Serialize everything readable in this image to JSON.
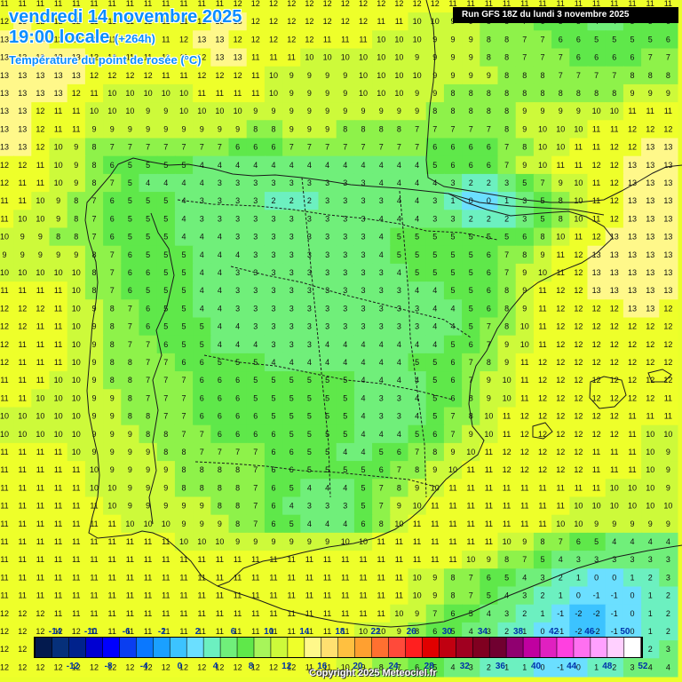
{
  "header": {
    "date": "vendredi 14 novembre 2025",
    "time": "19:00 locale",
    "lead": "(+264h)",
    "variable": "Température du point de rosée (°C)"
  },
  "run_info": "Run GFS 18Z du lundi 3 novembre 2025",
  "copyright": "Copyright 2025 Meteociel.fr",
  "legend": {
    "top_labels": [
      "-14",
      "-10",
      "-6",
      "-2",
      "2",
      "6",
      "10",
      "14",
      "18",
      "22",
      "26",
      "30",
      "34",
      "38",
      "42",
      "46",
      "50"
    ],
    "bottom_labels": [
      "-12",
      "-8",
      "-4",
      "0",
      "4",
      "8",
      "12",
      "16",
      "20",
      "24",
      "28",
      "32",
      "36",
      "40",
      "44",
      "48",
      "52"
    ],
    "colors": [
      "#031a4e",
      "#06307a",
      "#00228c",
      "#0000d2",
      "#0000ff",
      "#0a3ef0",
      "#0a78ff",
      "#1aa0ff",
      "#3cc3ff",
      "#6bdfff",
      "#6cf0c0",
      "#70ef7a",
      "#5fe84a",
      "#a7f55a",
      "#cdfa3a",
      "#eeff2a",
      "#fff88a",
      "#ffe070",
      "#ffc040",
      "#ffa030",
      "#ff7030",
      "#ff4a3a",
      "#ff1f1f",
      "#e00000",
      "#c00010",
      "#a00020",
      "#800020",
      "#700030",
      "#900070",
      "#c000a0",
      "#e020c0",
      "#ff40e0",
      "#ff70f0",
      "#ffa0ff",
      "#ffd0ff",
      "#ffffff"
    ]
  },
  "map": {
    "grid_values": [
      "11 11 11 11 11 11 11 11 11 11 11 11 11 12 12 12 12 12 12 12 12 12 12 12 12 11 11 11 11 11 11 11 11 11 11 11 11 11",
      "12 13 12 12 12 11 11 11 11 11 11 12 13 13 12 12 12 12 12 12 12 11 11 10 10 9 9 8 8 7 6 5 5 4 4 5 5 6",
      "13 13 13 12 12 11 11 11 11 11 12 13 13 12 12 12 12 12 11 11 11 10 10 10 9 9 9 8 8 7 7 6 6 5 5 5 5 6",
      "13 13 13 13 13 12 12 11 11 11 11 12 13 13 11 11 11 10 10 10 10 10 10 9 9 9 9 8 8 7 7 7 6 6 6 6 7 7",
      "13 13 13 13 13 12 12 12 12 11 11 12 12 12 11 10 9 9 9 9 10 10 10 10 9 9 9 9 8 8 8 7 7 7 7 8 8 8",
      "13 13 13 13 12 11 10 10 10 10 10 11 11 11 11 10 9 9 9 9 10 10 10 9 9 8 8 8 8 8 8 8 8 8 8 9 9 9",
      "13 13 12 11 11 10 10 10 9 9 10 10 10 10 9 9 9 9 9 9 9 9 9 9 8 8 8 8 8 9 9 9 9 10 10 11 11 11",
      "13 13 12 11 11 9 9 9 9 9 9 9 9 9 8 8 9 9 9 8 8 8 8 7 7 7 7 7 8 9 10 10 10 11 11 12 12 12",
      "13 13 12 10 9 8 7 7 7 7 7 7 7 6 6 6 7 7 7 7 7 7 7 7 6 6 6 6 7 8 10 10 11 11 12 12 13 13",
      "12 12 11 10 9 8 6 5 5 5 5 4 4 4 4 4 4 4 4 4 4 4 4 4 5 6 6 6 7 9 10 11 11 12 12 13 13 13",
      "12 11 11 10 9 8 7 5 4 4 4 4 3 3 3 3 3 3 3 3 3 4 4 4 4 3 2 2 3 5 7 9 10 11 12 13 13 13",
      "11 11 10 9 8 7 6 5 5 5 4 3 3 3 3 2 2 2 3 3 3 3 4 4 3 1 0 0 1 3 5 8 10 11 12 13 13 13",
      "11 10 10 9 8 7 6 5 5 5 4 3 3 3 3 3 3 3 3 3 3 4 4 4 3 3 2 2 2 3 5 8 10 11 12 13 13 13",
      "10 9 9 8 8 7 6 5 5 5 4 4 4 3 3 3 3 3 3 3 3 4 5 5 5 5 5 5 5 6 8 10 11 12 13 13 13 13",
      "9 9 9 9 9 8 7 6 5 5 5 4 4 4 3 3 3 3 3 3 3 4 5 5 5 5 5 6 7 8 9 11 12 13 13 13 13 13",
      "10 10 10 10 10 8 7 6 6 5 5 4 4 3 3 3 3 3 3 3 3 3 4 5 5 5 5 6 7 9 10 11 12 13 13 13 13 13",
      "11 11 11 11 10 8 7 6 5 5 5 4 4 3 3 3 3 3 3 3 3 3 3 4 4 5 5 6 8 9 11 12 12 13 13 13 13 13",
      "12 12 12 11 10 9 8 7 6 5 5 4 4 3 3 3 3 3 3 3 3 3 3 3 4 4 5 6 8 9 11 12 12 12 12 13 13 12",
      "12 12 11 11 10 9 8 7 6 5 5 5 4 4 3 3 3 3 3 3 3 3 3 3 4 4 5 7 8 10 11 12 12 12 12 12 12 12",
      "12 11 11 11 10 9 8 7 7 6 5 5 4 4 4 3 3 3 4 4 4 4 4 4 4 5 6 7 9 10 11 12 12 12 12 12 12 12",
      "12 11 11 11 10 9 8 8 7 7 6 6 5 5 5 4 4 4 4 4 4 4 4 5 5 6 7 8 9 11 12 12 12 12 12 12 12 12",
      "11 11 11 10 10 9 8 8 7 7 7 6 6 6 5 5 5 5 5 5 4 4 4 4 5 6 7 9 10 11 12 12 12 12 12 12 12 12",
      "11 11 10 10 10 9 9 8 7 7 7 6 6 6 5 5 5 5 5 5 4 3 3 4 5 6 8 9 10 11 12 12 12 12 12 12 12 11",
      "10 10 10 10 10 9 9 8 8 7 7 6 6 6 6 5 5 5 5 5 4 3 3 4 5 7 8 10 11 12 12 12 12 12 12 11 11 11",
      "10 10 10 10 10 9 9 9 8 8 7 7 6 6 6 6 5 5 5 5 4 4 4 5 6 7 9 10 11 12 12 12 12 12 12 11 10 10",
      "11 11 11 11 10 9 9 9 9 8 8 7 7 7 7 6 6 5 5 4 4 5 6 7 8 9 10 11 12 12 12 12 12 11 11 11 10 9",
      "11 11 11 11 11 10 9 9 9 9 8 8 8 8 7 6 6 5 5 5 5 6 7 8 9 10 11 11 12 12 12 12 12 11 11 11 10 9",
      "11 11 11 11 11 10 10 9 9 9 8 8 8 8 7 6 5 4 4 4 5 7 8 9 10 11 11 11 11 11 11 11 11 11 10 10 10 9",
      "11 11 11 11 11 11 10 9 9 9 9 9 8 8 7 6 4 3 3 3 5 7 9 10 11 11 11 11 11 11 11 11 10 10 10 10 10 10",
      "11 11 11 11 11 11 11 10 10 10 9 9 9 8 7 6 5 4 4 4 6 8 10 11 11 11 11 11 11 11 11 10 10 9 9 9 9 9",
      "11 11 11 11 11 11 11 11 11 11 10 10 10 9 9 9 9 9 9 10 10 11 11 11 11 11 11 11 10 9 8 7 6 5 4 4 4 4",
      "11 11 11 11 11 11 11 11 11 11 11 11 11 11 11 11 11 11 11 11 11 11 11 11 11 11 10 9 8 7 5 4 3 3 3 3 3 3",
      "11 11 11 11 11 11 11 11 11 11 11 11 11 11 11 11 11 11 11 11 11 11 11 10 9 8 7 6 5 4 3 2 1 0 0 1 2 3",
      "11 11 11 11 11 11 11 11 11 11 11 11 11 11 11 11 11 11 11 11 11 11 11 10 9 8 7 5 4 3 2 1 0 -1 -1 0 1 2",
      "12 12 12 11 11 11 11 11 11 11 11 11 11 11 11 11 11 11 11 11 11 11 10 9 7 6 5 4 3 2 1 -1 -2 -2 -1 0 1 2",
      "12 12 12 12 12 11 11 11 11 11 11 11 11 11 11 11 11 11 11 11 10 10 9 8 6 5 4 3 2 1 0 -1 -2 -2 -1 0 1 2",
      "12 12 12 12 12 12 12 12 12 12 12 12 12 12 12 11 11 11 11 10 9 8 7 6 5 4 3 2 1 0 -1 -2 -2 -1 0 1 2 3",
      "12 12 12 12 12 12 12 12 12 12 12 12 12 12 12 12 12 11 11 10 9 8 7 6 5 4 3 2 1 1 0 -1 0 1 2 3 4 4"
    ]
  }
}
